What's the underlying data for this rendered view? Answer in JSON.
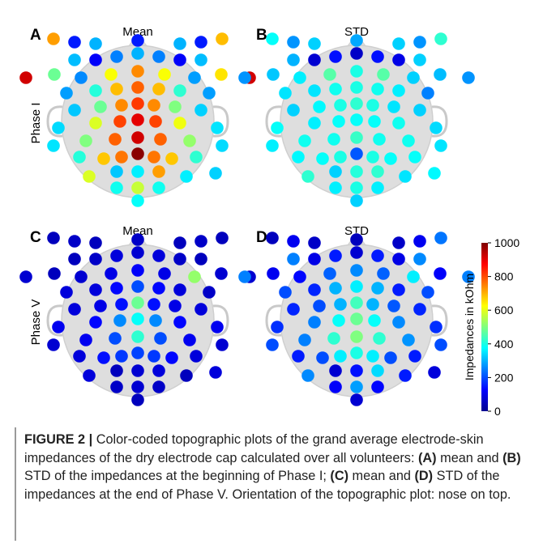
{
  "figure": {
    "panels": [
      {
        "letter": "A",
        "title": "Mean",
        "row_label": "Phase I"
      },
      {
        "letter": "B",
        "title": "STD",
        "row_label": ""
      },
      {
        "letter": "C",
        "title": "Mean",
        "row_label": "Phase V"
      },
      {
        "letter": "D",
        "title": "STD",
        "row_label": ""
      }
    ],
    "colorbar": {
      "label": "Impedances in kOhm",
      "ticks": [
        "0",
        "200",
        "400",
        "600",
        "800",
        "1000"
      ],
      "min": 0,
      "max": 1000,
      "colormap": "jet"
    }
  },
  "chart_data": [
    {
      "type": "heatmap",
      "subtype": "topographic-electrode-plot",
      "panel": "A",
      "title": "Mean",
      "phase": "Phase I",
      "unit": "kOhm",
      "scale": [
        0,
        1000
      ],
      "electrode_values": [
        720,
        150,
        300,
        150,
        300,
        150,
        690,
        310,
        120,
        250,
        300,
        250,
        120,
        310,
        920,
        480,
        260,
        620,
        740,
        620,
        280,
        650,
        920,
        280,
        410,
        690,
        780,
        690,
        420,
        280,
        320,
        480,
        740,
        820,
        740,
        500,
        330,
        340,
        590,
        810,
        900,
        810,
        610,
        350,
        350,
        500,
        780,
        920,
        780,
        520,
        340,
        410,
        680,
        760,
        990,
        760,
        680,
        420,
        590,
        320,
        360,
        720,
        360,
        330,
        390,
        570,
        390,
        380
      ]
    },
    {
      "type": "heatmap",
      "subtype": "topographic-electrode-plot",
      "panel": "B",
      "title": "STD",
      "unit": "kOhm",
      "scale": [
        0,
        1000
      ],
      "electrode_values": [
        380,
        270,
        330,
        290,
        330,
        270,
        420,
        300,
        80,
        140,
        70,
        140,
        100,
        330,
        270,
        320,
        360,
        460,
        400,
        460,
        330,
        310,
        270,
        350,
        350,
        390,
        400,
        390,
        360,
        250,
        330,
        370,
        400,
        420,
        400,
        350,
        330,
        380,
        360,
        380,
        380,
        380,
        390,
        340,
        360,
        390,
        390,
        430,
        390,
        390,
        350,
        370,
        380,
        400,
        210,
        400,
        380,
        380,
        420,
        330,
        410,
        420,
        350,
        370,
        360,
        400,
        360,
        330
      ]
    },
    {
      "type": "heatmap",
      "subtype": "topographic-electrode-plot",
      "panel": "C",
      "title": "Mean",
      "phase": "Phase V",
      "unit": "kOhm",
      "scale": [
        0,
        1000
      ],
      "electrode_values": [
        60,
        70,
        60,
        70,
        60,
        70,
        60,
        60,
        70,
        90,
        80,
        90,
        70,
        60,
        80,
        60,
        80,
        100,
        120,
        100,
        520,
        80,
        80,
        90,
        90,
        130,
        200,
        130,
        90,
        70,
        90,
        100,
        140,
        480,
        140,
        100,
        90,
        110,
        130,
        260,
        380,
        260,
        130,
        110,
        80,
        110,
        200,
        420,
        200,
        110,
        80,
        90,
        140,
        180,
        190,
        180,
        130,
        90,
        90,
        60,
        80,
        90,
        60,
        90,
        70,
        80,
        70,
        60
      ]
    },
    {
      "type": "heatmap",
      "subtype": "topographic-electrode-plot",
      "panel": "D",
      "title": "STD",
      "unit": "kOhm",
      "scale": [
        0,
        1000
      ],
      "electrode_values": [
        60,
        110,
        70,
        60,
        70,
        110,
        240,
        250,
        100,
        150,
        80,
        150,
        100,
        260,
        250,
        110,
        130,
        220,
        260,
        220,
        360,
        120,
        250,
        200,
        160,
        300,
        360,
        300,
        150,
        200,
        160,
        200,
        300,
        440,
        300,
        210,
        160,
        170,
        250,
        380,
        480,
        380,
        260,
        170,
        200,
        250,
        420,
        500,
        420,
        270,
        200,
        150,
        200,
        360,
        400,
        360,
        200,
        150,
        260,
        80,
        140,
        340,
        150,
        90,
        120,
        280,
        130,
        80
      ]
    }
  ],
  "caption": {
    "label": "FIGURE 2 |",
    "intro": " Color-coded topographic plots of the grand average electrode-skin impedances of the dry electrode cap calculated over all volunteers: ",
    "tag_a": "(A)",
    "text_a": " mean and ",
    "tag_b": "(B)",
    "text_b": " STD of the impedances at the beginning of Phase I; ",
    "tag_c": "(C)",
    "text_c": " mean and ",
    "tag_d": "(D)",
    "text_d": " STD of the impedances at the end of Phase V. Orientation of the topographic plot: nose on top."
  }
}
